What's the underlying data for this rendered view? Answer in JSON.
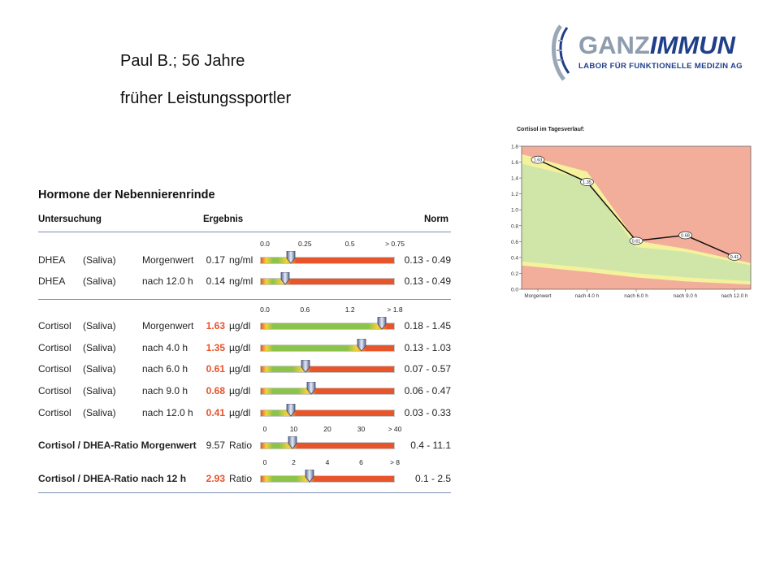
{
  "patient": {
    "name_age": "Paul B.; 56 Jahre",
    "note": "früher Leistungssportler"
  },
  "logo": {
    "word_ganz": "GANZ",
    "word_immun": "IMMUN",
    "tagline": "LABOR FÜR FUNKTIONELLE MEDIZIN AG",
    "colors": {
      "ganz": "#8e9dad",
      "immun": "#1f3f8a"
    }
  },
  "report": {
    "title": "Hormone der Nebennierenrinde",
    "headers": {
      "test": "Untersuchung",
      "result": "Ergebnis",
      "norm": "Norm"
    },
    "scales": {
      "dhea": [
        "0.0",
        "0.25",
        "0.5",
        "> 0.75"
      ],
      "cortisol": [
        "0.0",
        "0.6",
        "1.2",
        "> 1.8"
      ],
      "ratio_morning": [
        "0",
        "10",
        "20",
        "30",
        "> 40"
      ],
      "ratio_12h": [
        "0",
        "2",
        "4",
        "6",
        "> 8"
      ]
    },
    "dhea_rows": [
      {
        "name": "DHEA",
        "specimen": "(Saliva)",
        "time": "Morgenwert",
        "value": "0.17",
        "unit": "ng/ml",
        "norm": "0.13 - 0.49",
        "flag": false,
        "level": 0.227
      },
      {
        "name": "DHEA",
        "specimen": "(Saliva)",
        "time": "nach 12.0 h",
        "value": "0.14",
        "unit": "ng/ml",
        "norm": "0.13 - 0.49",
        "flag": false,
        "level": 0.187
      }
    ],
    "cortisol_rows": [
      {
        "name": "Cortisol",
        "specimen": "(Saliva)",
        "time": "Morgenwert",
        "value": "1.63",
        "unit": "µg/dl",
        "norm": "0.18 - 1.45",
        "flag": true,
        "level": 0.906
      },
      {
        "name": "Cortisol",
        "specimen": "(Saliva)",
        "time": "nach 4.0 h",
        "value": "1.35",
        "unit": "µg/dl",
        "norm": "0.13 - 1.03",
        "flag": true,
        "level": 0.75
      },
      {
        "name": "Cortisol",
        "specimen": "(Saliva)",
        "time": "nach 6.0 h",
        "value": "0.61",
        "unit": "µg/dl",
        "norm": "0.07 - 0.57",
        "flag": true,
        "level": 0.339
      },
      {
        "name": "Cortisol",
        "specimen": "(Saliva)",
        "time": "nach 9.0 h",
        "value": "0.68",
        "unit": "µg/dl",
        "norm": "0.06 - 0.47",
        "flag": true,
        "level": 0.378
      },
      {
        "name": "Cortisol",
        "specimen": "(Saliva)",
        "time": "nach 12.0 h",
        "value": "0.41",
        "unit": "µg/dl",
        "norm": "0.03 - 0.33",
        "flag": true,
        "level": 0.228
      }
    ],
    "ratio_rows": [
      {
        "name": "Cortisol / DHEA-Ratio Morgenwert",
        "value": "9.57",
        "unit": "Ratio",
        "norm": "0.4 - 11.1",
        "flag": false,
        "level": 0.239
      },
      {
        "name": "Cortisol / DHEA-Ratio nach 12 h",
        "value": "2.93",
        "unit": "Ratio",
        "norm": "0.1 - 2.5",
        "flag": true,
        "level": 0.366
      }
    ],
    "colors": {
      "low": "#e8552a",
      "normal": "#8cc34a",
      "flag": "#e8522a",
      "rule": "#7d8fb3"
    }
  },
  "chart_data": {
    "type": "line",
    "title": "Cortisol im Tagesverlauf:",
    "categories": [
      "Morgenwert",
      "nach 4.0 h",
      "nach 6.0 h",
      "nach 9.0 h",
      "nach 12.0 h"
    ],
    "x": [
      0,
      4,
      6,
      9,
      12
    ],
    "values": [
      1.63,
      1.35,
      0.61,
      0.68,
      0.41
    ],
    "point_labels": [
      "1.63",
      "1.35",
      "0.61",
      "0.68",
      "0.41"
    ],
    "ylim": [
      0,
      1.8
    ],
    "yticks": [
      "1.8",
      "1.6",
      "1.4",
      "1.2",
      "1.0",
      "0.8",
      "0.6",
      "0.4",
      "0.2",
      "0.0"
    ],
    "bands": {
      "green_upper": [
        1.58,
        1.38,
        0.53,
        0.47,
        0.3
      ],
      "yellow_upper": [
        1.7,
        1.48,
        0.61,
        0.51,
        0.33
      ],
      "green_lower": [
        0.3,
        0.22,
        0.15,
        0.1,
        0.06
      ],
      "yellow_lower": [
        0.35,
        0.27,
        0.2,
        0.15,
        0.1
      ]
    },
    "colors": {
      "background": "#f3ae9b",
      "green": "#cfe6a8",
      "yellow": "#f4f29c",
      "line": "#111111"
    },
    "grid": false
  }
}
